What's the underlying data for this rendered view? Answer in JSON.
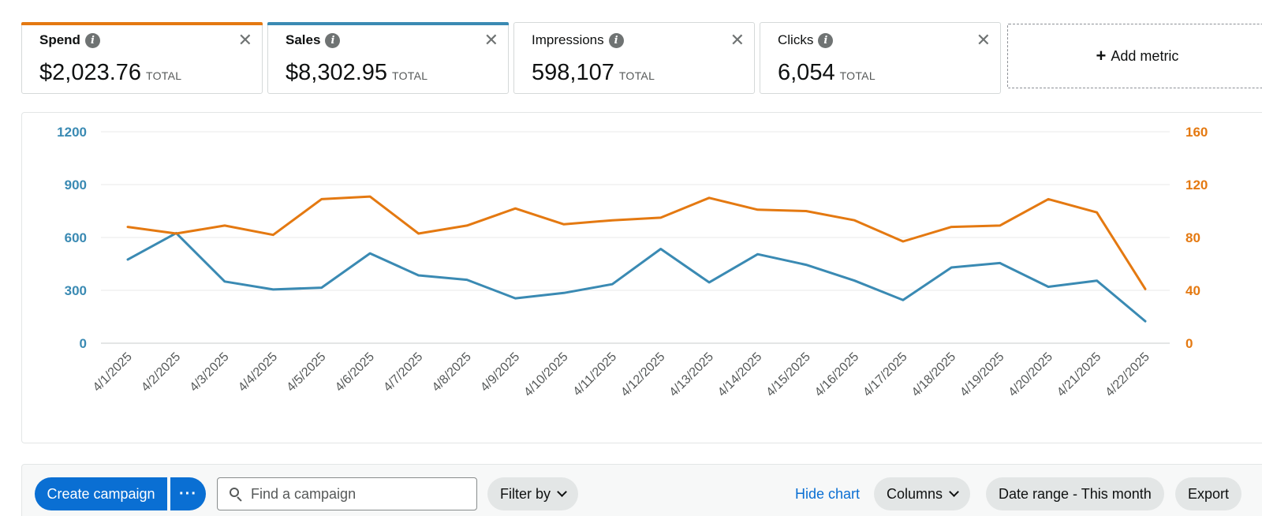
{
  "metrics": [
    {
      "name": "Spend",
      "value": "$2,023.76",
      "suffix": "TOTAL",
      "color": "#e47911",
      "selected": true
    },
    {
      "name": "Sales",
      "value": "$8,302.95",
      "suffix": "TOTAL",
      "color": "#3a8ab3",
      "selected": true
    },
    {
      "name": "Impressions",
      "value": "598,107",
      "suffix": "TOTAL",
      "selected": false
    },
    {
      "name": "Clicks",
      "value": "6,054",
      "suffix": "TOTAL",
      "selected": false
    }
  ],
  "add_metric_label": "Add metric",
  "icons": {
    "info": "info-icon",
    "close": "close-icon",
    "plus": "plus-icon",
    "search": "search-icon",
    "chevron": "chevron-down-icon",
    "more": "more-icon"
  },
  "chart_data": {
    "type": "line",
    "x": [
      "4/1/2025",
      "4/2/2025",
      "4/3/2025",
      "4/4/2025",
      "4/5/2025",
      "4/6/2025",
      "4/7/2025",
      "4/8/2025",
      "4/9/2025",
      "4/10/2025",
      "4/11/2025",
      "4/12/2025",
      "4/13/2025",
      "4/14/2025",
      "4/15/2025",
      "4/16/2025",
      "4/17/2025",
      "4/18/2025",
      "4/19/2025",
      "4/20/2025",
      "4/21/2025",
      "4/22/2025"
    ],
    "series": [
      {
        "name": "Sales",
        "axis": "left",
        "color": "#3a8ab3",
        "values": [
          475,
          625,
          350,
          305,
          315,
          510,
          385,
          360,
          255,
          285,
          335,
          535,
          345,
          505,
          445,
          355,
          245,
          430,
          455,
          320,
          355,
          125
        ]
      },
      {
        "name": "Spend",
        "axis": "right",
        "color": "#e47911",
        "values": [
          88,
          83,
          89,
          82,
          109,
          111,
          83,
          89,
          102,
          90,
          93,
          95,
          110,
          101,
          100,
          93,
          77,
          88,
          89,
          109,
          99,
          41
        ]
      }
    ],
    "y_left": {
      "ticks": [
        0,
        300,
        600,
        900,
        1200
      ],
      "range": [
        0,
        1200
      ],
      "color": "#3a8ab3"
    },
    "y_right": {
      "ticks": [
        0,
        40,
        80,
        120,
        160
      ],
      "range": [
        0,
        160
      ],
      "color": "#e47911"
    },
    "grid": true
  },
  "toolbar": {
    "create_label": "Create campaign",
    "more_label": "···",
    "search_placeholder": "Find a campaign",
    "filter_label": "Filter by",
    "hide_chart_label": "Hide chart",
    "columns_label": "Columns",
    "date_range_label": "Date range - This month",
    "export_label": "Export"
  }
}
